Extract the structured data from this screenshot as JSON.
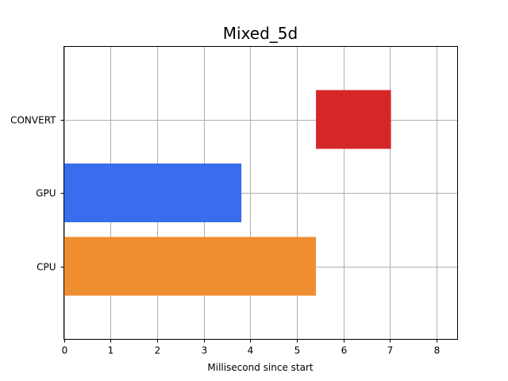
{
  "chart_data": {
    "type": "bar",
    "orientation": "horizontal",
    "title": "Mixed_5d",
    "xlabel": "Millisecond since start",
    "ylabel": "",
    "xlim": [
      0,
      8.45
    ],
    "x_ticks": [
      0,
      1,
      2,
      3,
      4,
      5,
      6,
      7,
      8
    ],
    "x_tick_labels": [
      "0",
      "1",
      "2",
      "3",
      "4",
      "5",
      "6",
      "7",
      "8"
    ],
    "categories": [
      "CPU",
      "GPU",
      "CONVERT"
    ],
    "grid": true,
    "bars": [
      {
        "category": "CPU",
        "start": 0,
        "end": 5.41,
        "color": "#ee8e31"
      },
      {
        "category": "GPU",
        "start": 0,
        "end": 3.81,
        "color": "#386ded"
      },
      {
        "category": "CONVERT",
        "start": 5.41,
        "end": 7.02,
        "color": "#d62728"
      }
    ]
  }
}
